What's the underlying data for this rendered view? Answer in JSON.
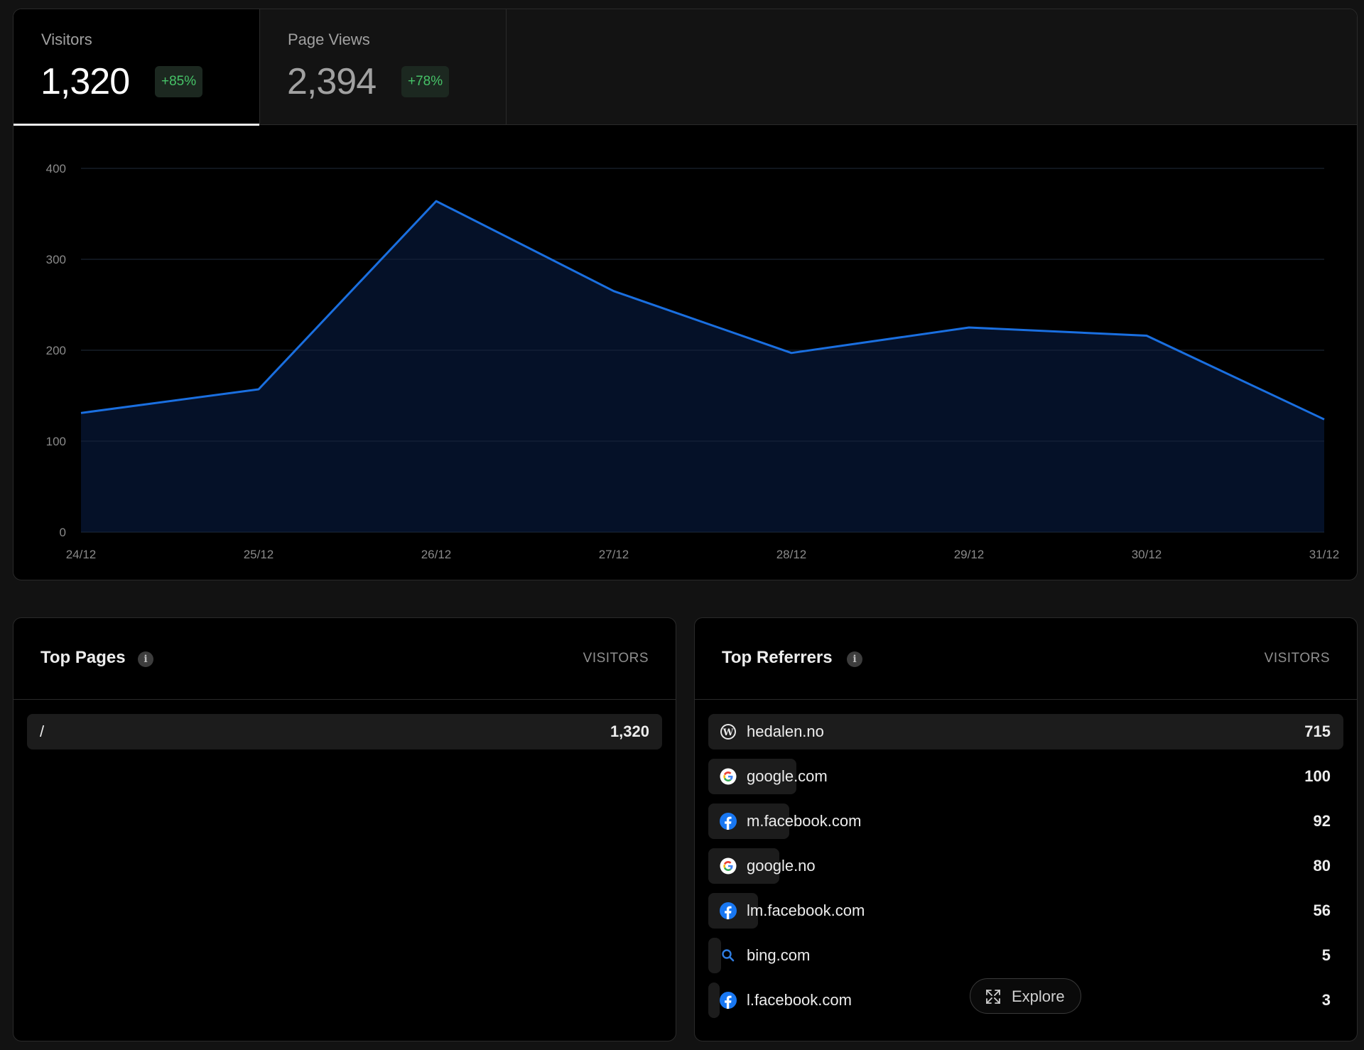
{
  "stats": [
    {
      "label": "Visitors",
      "value": "1,320",
      "change": "+85%",
      "active": true
    },
    {
      "label": "Page Views",
      "value": "2,394",
      "change": "+78%",
      "active": false
    }
  ],
  "colors": {
    "accent": "#1a6fe0",
    "area_fill": "#05122a",
    "positive": "#46c267"
  },
  "chart_data": {
    "type": "area",
    "x": [
      "24/12",
      "25/12",
      "26/12",
      "27/12",
      "28/12",
      "29/12",
      "30/12",
      "31/12"
    ],
    "series": [
      {
        "values": [
          131,
          157,
          364,
          265,
          197,
          225,
          216,
          124
        ]
      }
    ],
    "ylim": [
      0,
      400
    ],
    "yticks": [
      0,
      100,
      200,
      300,
      400
    ],
    "grid": true
  },
  "top_pages": {
    "title": "Top Pages",
    "column": "VISITORS",
    "rows": [
      {
        "label": "/",
        "value": "1,320",
        "fraction": 1.0
      }
    ]
  },
  "top_referrers": {
    "title": "Top Referrers",
    "column": "VISITORS",
    "rows": [
      {
        "label": "hedalen.no",
        "value": "715",
        "icon": "wordpress-icon"
      },
      {
        "label": "google.com",
        "value": "100",
        "icon": "google-icon"
      },
      {
        "label": "m.facebook.com",
        "value": "92",
        "icon": "facebook-icon"
      },
      {
        "label": "google.no",
        "value": "80",
        "icon": "google-icon"
      },
      {
        "label": "lm.facebook.com",
        "value": "56",
        "icon": "facebook-icon"
      },
      {
        "label": "bing.com",
        "value": "5",
        "icon": "bing-search-icon"
      },
      {
        "label": "l.facebook.com",
        "value": "3",
        "icon": "facebook-icon"
      }
    ]
  },
  "explore_label": "Explore"
}
